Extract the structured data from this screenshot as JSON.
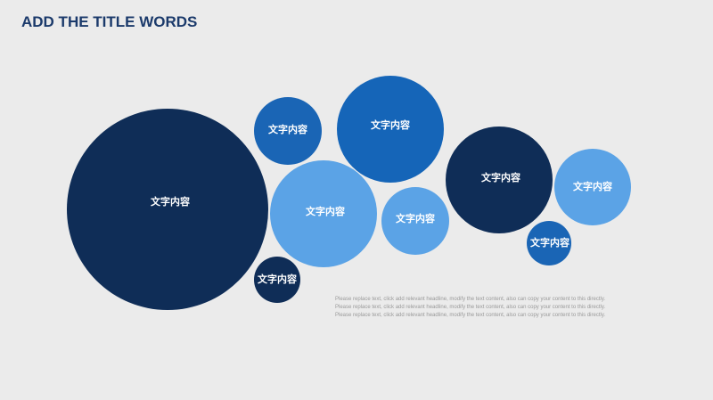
{
  "header": {
    "title": "ADD THE TITLE WORDS"
  },
  "nodes": [
    {
      "label": "文字内容"
    },
    {
      "label": "文字内容"
    },
    {
      "label": "文字内容"
    },
    {
      "label": "文字内容"
    },
    {
      "label": "文字内容"
    },
    {
      "label": "文字内容"
    },
    {
      "label": "文字内容"
    },
    {
      "label": "文字内容"
    },
    {
      "label": "文字内容"
    }
  ],
  "body": {
    "lines": [
      "Please replace text, click add relevant headline, modify the text content, also can copy your content to this directly.",
      "Please replace text, click add relevant headline, modify the text content, also can copy your content to this directly.",
      "Please replace text, click add relevant headline, modify the text content, also can copy your content to this directly."
    ]
  }
}
